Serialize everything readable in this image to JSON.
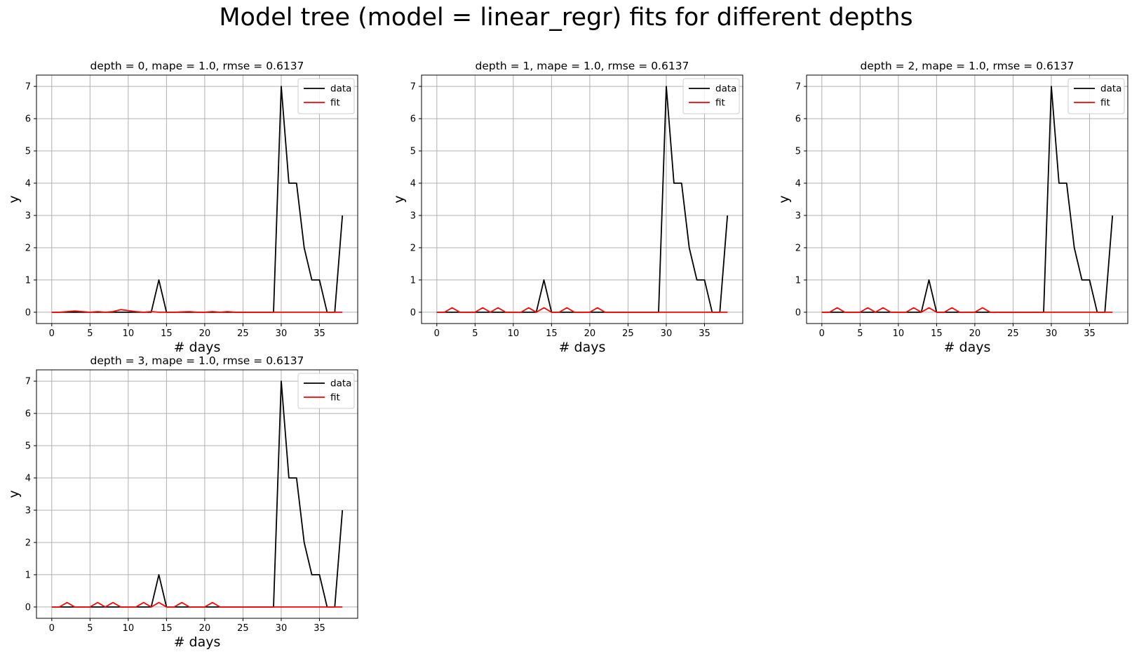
{
  "figure": {
    "suptitle": "Model tree (model = linear_regr) fits for different depths"
  },
  "chart_data": [
    {
      "type": "line",
      "title": "depth = 0, mape = 1.0, rmse = 0.6137",
      "xlabel": "# days",
      "ylabel": "y",
      "xlim": [
        -2,
        40
      ],
      "ylim": [
        -0.35,
        7.35
      ],
      "xticks": [
        0,
        5,
        10,
        15,
        20,
        25,
        30,
        35
      ],
      "yticks": [
        0,
        1,
        2,
        3,
        4,
        5,
        6,
        7
      ],
      "grid": true,
      "legend_position": "top-right",
      "series": [
        {
          "name": "data",
          "color": "#000000",
          "x": [
            0,
            1,
            2,
            3,
            4,
            5,
            6,
            7,
            8,
            9,
            10,
            11,
            12,
            13,
            14,
            15,
            16,
            17,
            18,
            19,
            20,
            21,
            22,
            23,
            24,
            25,
            26,
            27,
            28,
            29,
            30,
            31,
            32,
            33,
            34,
            35,
            36,
            37,
            38
          ],
          "y": [
            0,
            0,
            0,
            0,
            0,
            0,
            0,
            0,
            0,
            0,
            0,
            0,
            0,
            0,
            1,
            0,
            0,
            0,
            0,
            0,
            0,
            0,
            0,
            0,
            0,
            0,
            0,
            0,
            0,
            0,
            7,
            4,
            4,
            2,
            1,
            1,
            0,
            0,
            3
          ]
        },
        {
          "name": "fit",
          "color": "#ff0000",
          "x": [
            0,
            1,
            2,
            3,
            4,
            5,
            6,
            7,
            8,
            9,
            10,
            11,
            12,
            13,
            14,
            15,
            16,
            17,
            18,
            19,
            20,
            21,
            22,
            23,
            24,
            25,
            26,
            27,
            28,
            29,
            30,
            31,
            32,
            33,
            34,
            35,
            36,
            37,
            38
          ],
          "y": [
            0,
            0,
            0.02,
            0.04,
            0.02,
            0,
            0.02,
            0,
            0.02,
            0.08,
            0.05,
            0.02,
            0,
            0.02,
            0,
            0,
            0,
            0.01,
            0.02,
            0,
            0,
            0.02,
            0,
            0.02,
            0,
            0,
            0,
            0,
            0,
            0,
            0,
            0,
            0,
            0,
            0,
            0,
            0,
            0,
            0
          ]
        }
      ]
    },
    {
      "type": "line",
      "title": "depth = 1, mape = 1.0, rmse = 0.6137",
      "xlabel": "# days",
      "ylabel": "y",
      "xlim": [
        -2,
        40
      ],
      "ylim": [
        -0.35,
        7.35
      ],
      "xticks": [
        0,
        5,
        10,
        15,
        20,
        25,
        30,
        35
      ],
      "yticks": [
        0,
        1,
        2,
        3,
        4,
        5,
        6,
        7
      ],
      "grid": true,
      "legend_position": "top-right",
      "series": [
        {
          "name": "data",
          "color": "#000000",
          "x": [
            0,
            1,
            2,
            3,
            4,
            5,
            6,
            7,
            8,
            9,
            10,
            11,
            12,
            13,
            14,
            15,
            16,
            17,
            18,
            19,
            20,
            21,
            22,
            23,
            24,
            25,
            26,
            27,
            28,
            29,
            30,
            31,
            32,
            33,
            34,
            35,
            36,
            37,
            38
          ],
          "y": [
            0,
            0,
            0,
            0,
            0,
            0,
            0,
            0,
            0,
            0,
            0,
            0,
            0,
            0,
            1,
            0,
            0,
            0,
            0,
            0,
            0,
            0,
            0,
            0,
            0,
            0,
            0,
            0,
            0,
            0,
            7,
            4,
            4,
            2,
            1,
            1,
            0,
            0,
            3
          ]
        },
        {
          "name": "fit",
          "color": "#ff0000",
          "x": [
            0,
            1,
            2,
            3,
            4,
            5,
            6,
            7,
            8,
            9,
            10,
            11,
            12,
            13,
            14,
            15,
            16,
            17,
            18,
            19,
            20,
            21,
            22,
            23,
            24,
            25,
            26,
            27,
            28,
            29,
            30,
            31,
            32,
            33,
            34,
            35,
            36,
            37,
            38
          ],
          "y": [
            0,
            0,
            0.14,
            0,
            0,
            0,
            0.14,
            0,
            0.14,
            0,
            0,
            0,
            0.14,
            0,
            0.14,
            0,
            0,
            0.14,
            0,
            0,
            0,
            0.14,
            0,
            0,
            0,
            0,
            0,
            0,
            0,
            0,
            0,
            0,
            0,
            0,
            0,
            0,
            0,
            0,
            0
          ]
        }
      ]
    },
    {
      "type": "line",
      "title": "depth = 2, mape = 1.0, rmse = 0.6137",
      "xlabel": "# days",
      "ylabel": "y",
      "xlim": [
        -2,
        40
      ],
      "ylim": [
        -0.35,
        7.35
      ],
      "xticks": [
        0,
        5,
        10,
        15,
        20,
        25,
        30,
        35
      ],
      "yticks": [
        0,
        1,
        2,
        3,
        4,
        5,
        6,
        7
      ],
      "grid": true,
      "legend_position": "top-right",
      "series": [
        {
          "name": "data",
          "color": "#000000",
          "x": [
            0,
            1,
            2,
            3,
            4,
            5,
            6,
            7,
            8,
            9,
            10,
            11,
            12,
            13,
            14,
            15,
            16,
            17,
            18,
            19,
            20,
            21,
            22,
            23,
            24,
            25,
            26,
            27,
            28,
            29,
            30,
            31,
            32,
            33,
            34,
            35,
            36,
            37,
            38
          ],
          "y": [
            0,
            0,
            0,
            0,
            0,
            0,
            0,
            0,
            0,
            0,
            0,
            0,
            0,
            0,
            1,
            0,
            0,
            0,
            0,
            0,
            0,
            0,
            0,
            0,
            0,
            0,
            0,
            0,
            0,
            0,
            7,
            4,
            4,
            2,
            1,
            1,
            0,
            0,
            3
          ]
        },
        {
          "name": "fit",
          "color": "#ff0000",
          "x": [
            0,
            1,
            2,
            3,
            4,
            5,
            6,
            7,
            8,
            9,
            10,
            11,
            12,
            13,
            14,
            15,
            16,
            17,
            18,
            19,
            20,
            21,
            22,
            23,
            24,
            25,
            26,
            27,
            28,
            29,
            30,
            31,
            32,
            33,
            34,
            35,
            36,
            37,
            38
          ],
          "y": [
            0,
            0,
            0.14,
            0,
            0,
            0,
            0.14,
            0,
            0.14,
            0,
            0,
            0,
            0.14,
            0,
            0.14,
            0,
            0,
            0.14,
            0,
            0,
            0,
            0.14,
            0,
            0,
            0,
            0,
            0,
            0,
            0,
            0,
            0,
            0,
            0,
            0,
            0,
            0,
            0,
            0,
            0
          ]
        }
      ]
    },
    {
      "type": "line",
      "title": "depth = 3, mape = 1.0, rmse = 0.6137",
      "xlabel": "# days",
      "ylabel": "y",
      "xlim": [
        -2,
        40
      ],
      "ylim": [
        -0.35,
        7.35
      ],
      "xticks": [
        0,
        5,
        10,
        15,
        20,
        25,
        30,
        35
      ],
      "yticks": [
        0,
        1,
        2,
        3,
        4,
        5,
        6,
        7
      ],
      "grid": true,
      "legend_position": "top-right",
      "series": [
        {
          "name": "data",
          "color": "#000000",
          "x": [
            0,
            1,
            2,
            3,
            4,
            5,
            6,
            7,
            8,
            9,
            10,
            11,
            12,
            13,
            14,
            15,
            16,
            17,
            18,
            19,
            20,
            21,
            22,
            23,
            24,
            25,
            26,
            27,
            28,
            29,
            30,
            31,
            32,
            33,
            34,
            35,
            36,
            37,
            38
          ],
          "y": [
            0,
            0,
            0,
            0,
            0,
            0,
            0,
            0,
            0,
            0,
            0,
            0,
            0,
            0,
            1,
            0,
            0,
            0,
            0,
            0,
            0,
            0,
            0,
            0,
            0,
            0,
            0,
            0,
            0,
            0,
            7,
            4,
            4,
            2,
            1,
            1,
            0,
            0,
            3
          ]
        },
        {
          "name": "fit",
          "color": "#ff0000",
          "x": [
            0,
            1,
            2,
            3,
            4,
            5,
            6,
            7,
            8,
            9,
            10,
            11,
            12,
            13,
            14,
            15,
            16,
            17,
            18,
            19,
            20,
            21,
            22,
            23,
            24,
            25,
            26,
            27,
            28,
            29,
            30,
            31,
            32,
            33,
            34,
            35,
            36,
            37,
            38
          ],
          "y": [
            0,
            0,
            0.14,
            0,
            0,
            0,
            0.14,
            0,
            0.14,
            0,
            0,
            0,
            0.14,
            0,
            0.14,
            0,
            0,
            0.14,
            0,
            0,
            0,
            0.14,
            0,
            0,
            0,
            0,
            0,
            0,
            0,
            0,
            0,
            0,
            0,
            0,
            0,
            0,
            0,
            0,
            0
          ]
        }
      ]
    }
  ]
}
